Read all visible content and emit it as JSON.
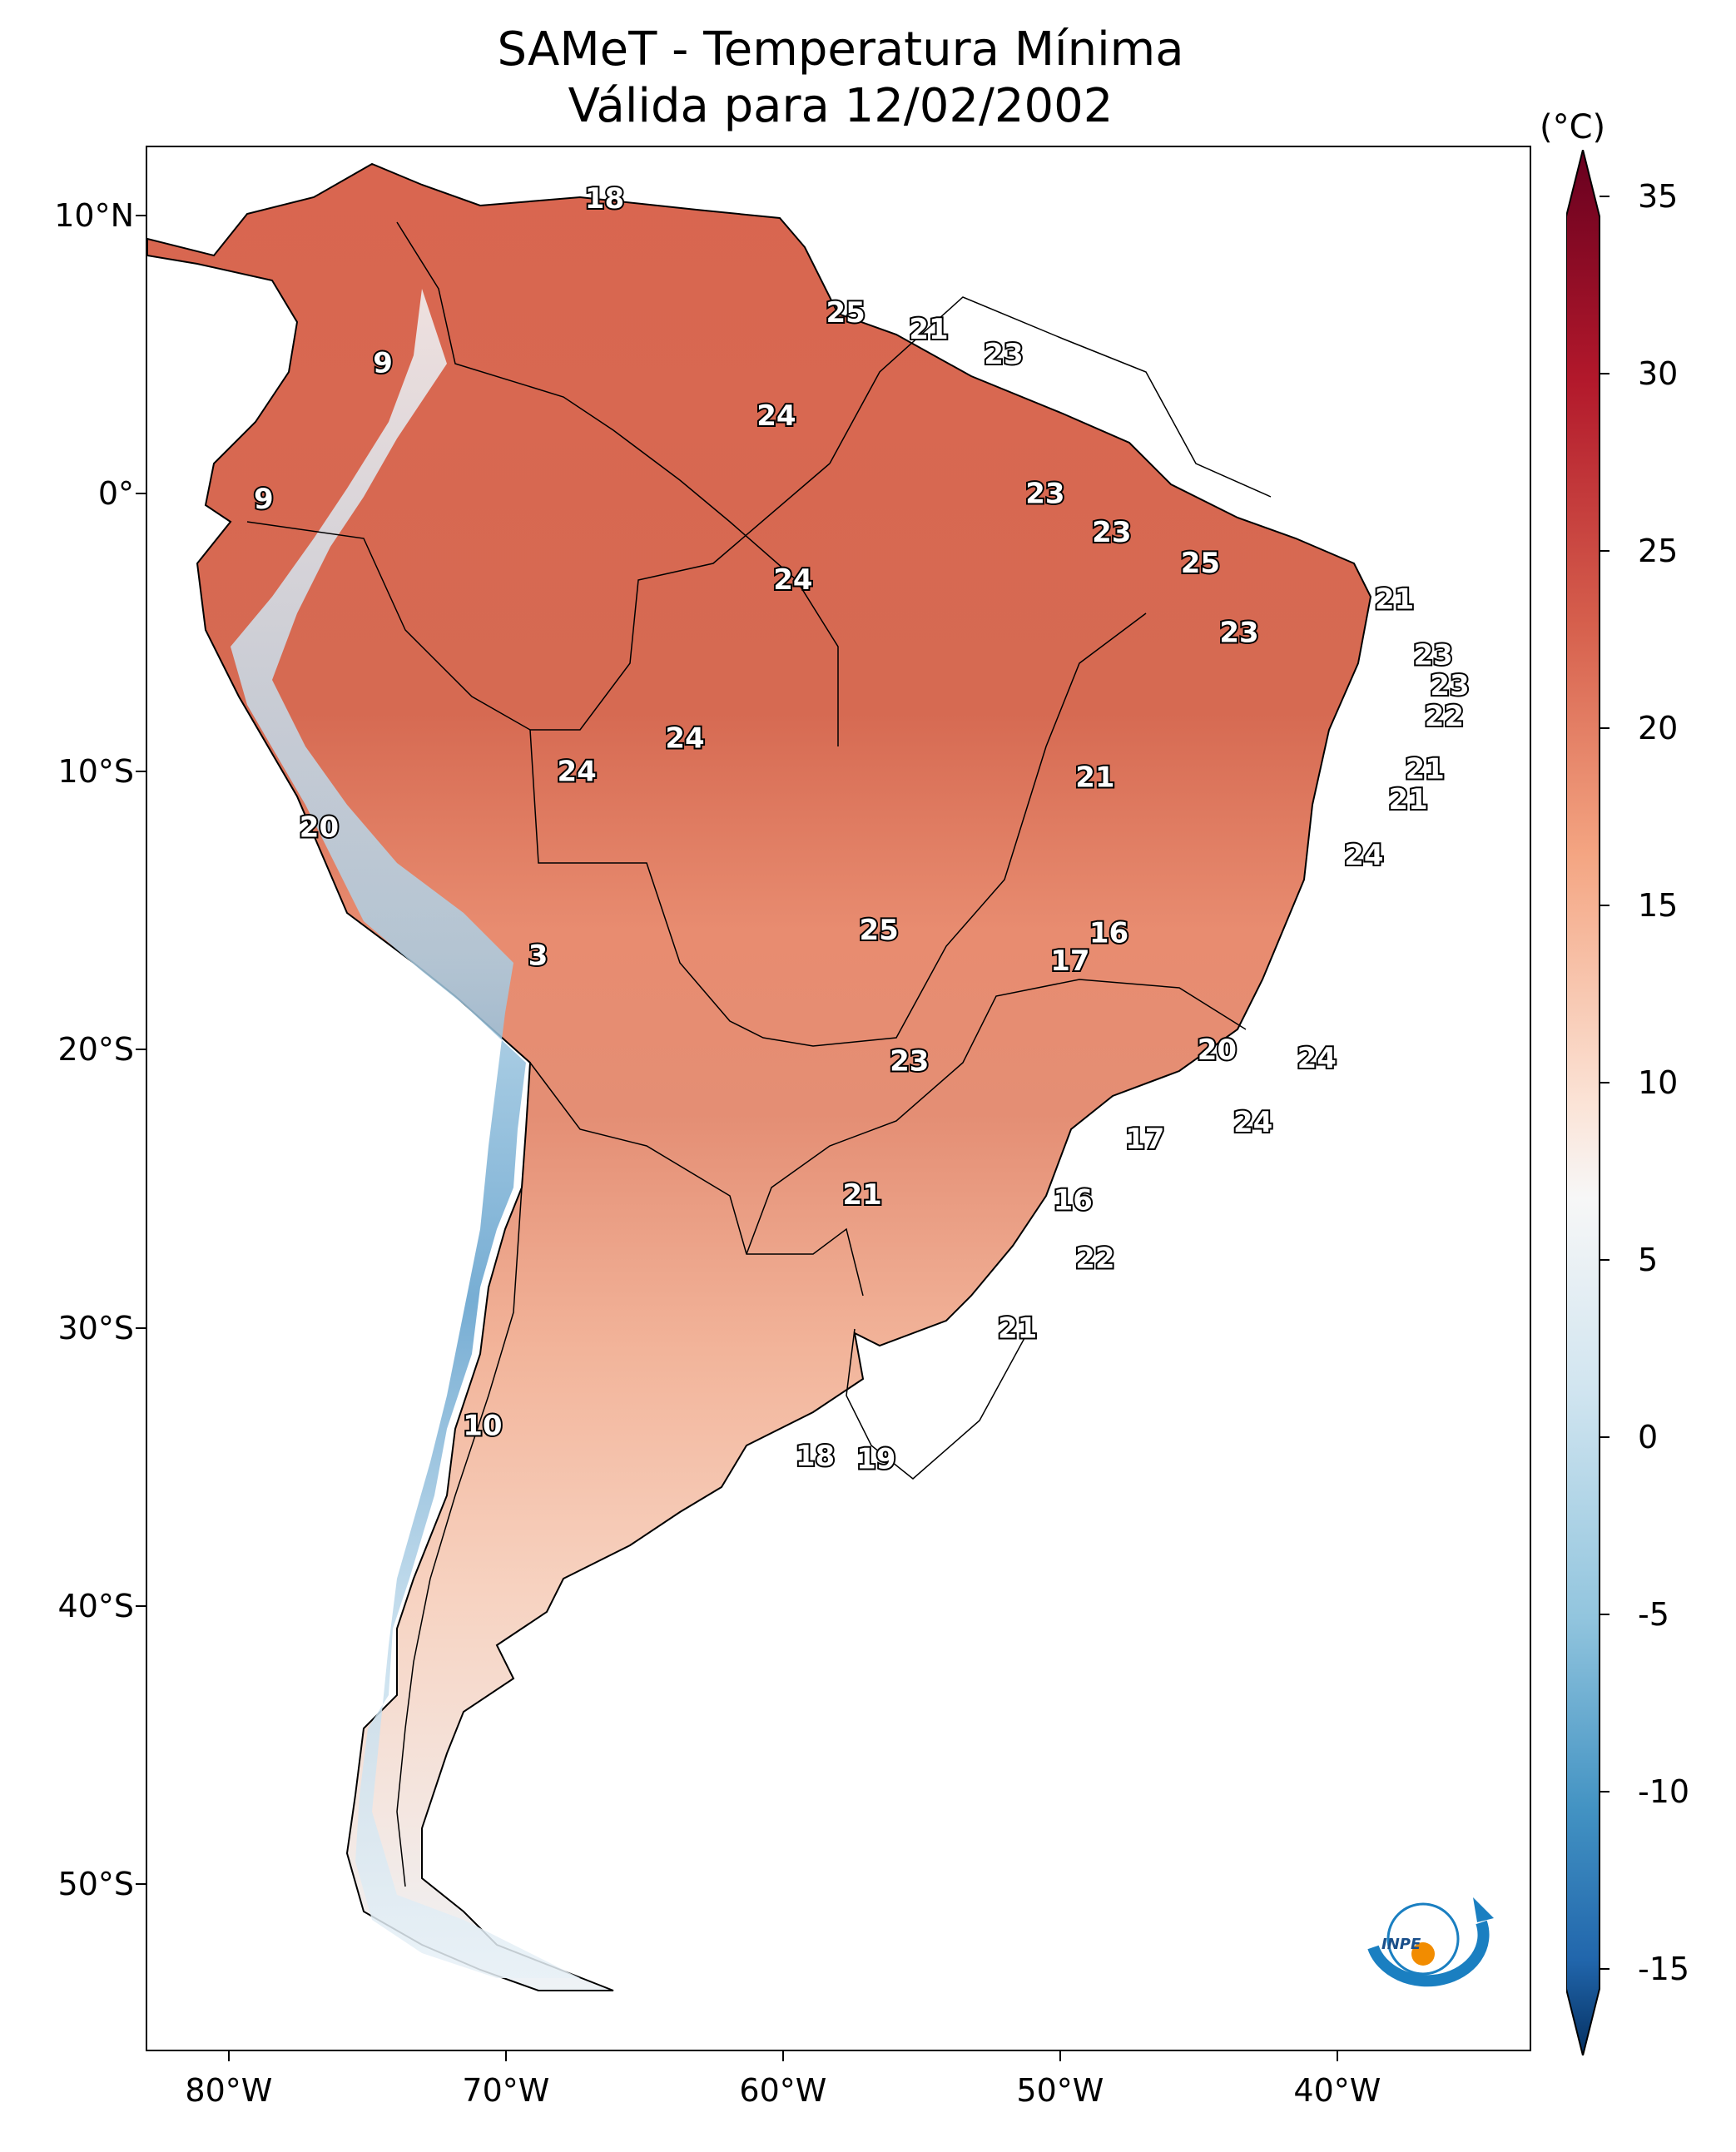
{
  "title": {
    "line1": "SAMeT - Temperatura Mínima",
    "line2": "Válida para 12/02/2002"
  },
  "colorbar": {
    "unit": "(°C)",
    "min": -15,
    "max": 35,
    "ticks": [
      "35",
      "30",
      "25",
      "20",
      "15",
      "10",
      "5",
      "0",
      "-5",
      "-10",
      "-15"
    ],
    "colormap": "RdBu_r",
    "extend": "both"
  },
  "axes": {
    "lat_ticks": [
      "10°N",
      "0°",
      "10°S",
      "20°S",
      "30°S",
      "40°S",
      "50°S"
    ],
    "lon_ticks": [
      "80°W",
      "70°W",
      "60°W",
      "50°W",
      "40°W"
    ],
    "lat_range": [
      -56,
      12.5
    ],
    "lon_range": [
      -83,
      -33
    ]
  },
  "isotherm_labels": [
    {
      "text": "18",
      "lon": -66.5,
      "lat": 10.6
    },
    {
      "text": "25",
      "lon": -57.8,
      "lat": 6.5
    },
    {
      "text": "21",
      "lon": -54.8,
      "lat": 5.9
    },
    {
      "text": "23",
      "lon": -52.1,
      "lat": 5.0
    },
    {
      "text": "9",
      "lon": -74.5,
      "lat": 4.7
    },
    {
      "text": "24",
      "lon": -60.3,
      "lat": 2.8
    },
    {
      "text": "9",
      "lon": -78.8,
      "lat": -0.2
    },
    {
      "text": "23",
      "lon": -50.6,
      "lat": 0.0
    },
    {
      "text": "23",
      "lon": -48.2,
      "lat": -1.4
    },
    {
      "text": "25",
      "lon": -45.0,
      "lat": -2.5
    },
    {
      "text": "21",
      "lon": -38.0,
      "lat": -3.8
    },
    {
      "text": "24",
      "lon": -59.7,
      "lat": -3.1
    },
    {
      "text": "23",
      "lon": -43.6,
      "lat": -5.0
    },
    {
      "text": "23",
      "lon": -36.6,
      "lat": -5.8
    },
    {
      "text": "23",
      "lon": -36.0,
      "lat": -6.9
    },
    {
      "text": "22",
      "lon": -36.2,
      "lat": -8.0
    },
    {
      "text": "24",
      "lon": -63.6,
      "lat": -8.8
    },
    {
      "text": "24",
      "lon": -67.5,
      "lat": -10.0
    },
    {
      "text": "21",
      "lon": -48.8,
      "lat": -10.2
    },
    {
      "text": "21",
      "lon": -36.9,
      "lat": -9.9
    },
    {
      "text": "21",
      "lon": -37.5,
      "lat": -11.0
    },
    {
      "text": "20",
      "lon": -76.8,
      "lat": -12.0
    },
    {
      "text": "24",
      "lon": -39.1,
      "lat": -13.0
    },
    {
      "text": "25",
      "lon": -56.6,
      "lat": -15.7
    },
    {
      "text": "16",
      "lon": -48.3,
      "lat": -15.8
    },
    {
      "text": "17",
      "lon": -49.7,
      "lat": -16.8
    },
    {
      "text": "3",
      "lon": -68.9,
      "lat": -16.6
    },
    {
      "text": "20",
      "lon": -44.4,
      "lat": -20.0
    },
    {
      "text": "24",
      "lon": -40.8,
      "lat": -20.3
    },
    {
      "text": "23",
      "lon": -55.5,
      "lat": -20.4
    },
    {
      "text": "24",
      "lon": -43.1,
      "lat": -22.6
    },
    {
      "text": "17",
      "lon": -47.0,
      "lat": -23.2
    },
    {
      "text": "21",
      "lon": -57.2,
      "lat": -25.2
    },
    {
      "text": "16",
      "lon": -49.6,
      "lat": -25.4
    },
    {
      "text": "22",
      "lon": -48.8,
      "lat": -27.5
    },
    {
      "text": "21",
      "lon": -51.6,
      "lat": -30.0
    },
    {
      "text": "10",
      "lon": -70.9,
      "lat": -33.5
    },
    {
      "text": "18",
      "lon": -58.9,
      "lat": -34.6
    },
    {
      "text": "19",
      "lon": -56.7,
      "lat": -34.7
    }
  ],
  "logo": {
    "text": "INPE"
  }
}
